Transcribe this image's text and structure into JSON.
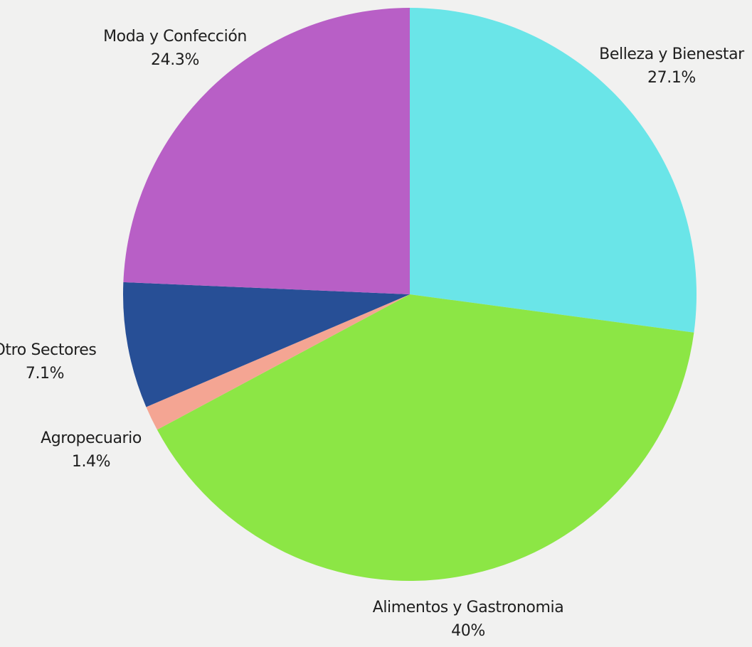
{
  "chart_data": {
    "type": "pie",
    "title": "",
    "slices": [
      {
        "label": "Belleza y Bienestar",
        "value": 27.1,
        "display": "27.1%",
        "color": "#6ae5e8"
      },
      {
        "label": "Alimentos y Gastronomia",
        "value": 40.0,
        "display": "40%",
        "color": "#8ce645"
      },
      {
        "label": "Agropecuario",
        "value": 1.4,
        "display": "1.4%",
        "color": "#f4a593"
      },
      {
        "label": "Otro Sectores",
        "value": 7.1,
        "display": "7.1%",
        "color": "#274f96"
      },
      {
        "label": "Moda y Confección",
        "value": 24.3,
        "display": "24.3%",
        "color": "#b85fc6"
      }
    ],
    "start_angle": "12 o'clock",
    "direction": "clockwise",
    "legend": "none",
    "labels": "outside"
  },
  "page": {
    "background_color": "#f1f1f0"
  }
}
